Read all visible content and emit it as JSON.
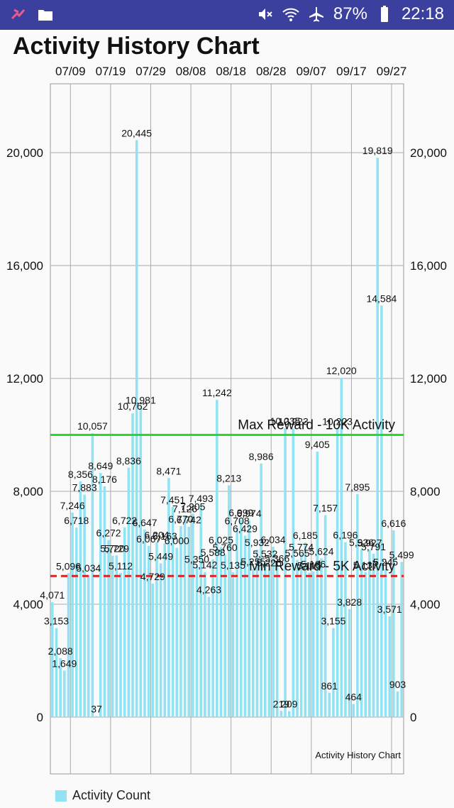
{
  "status_bar": {
    "battery": "87%",
    "time": "22:18"
  },
  "app": {
    "title": "Activity History Chart"
  },
  "chart_data": {
    "type": "bar",
    "description_label": "Activity History Chart",
    "x_tick_labels": [
      "07/09",
      "07/19",
      "07/29",
      "08/08",
      "08/18",
      "08/28",
      "09/07",
      "09/17",
      "09/27"
    ],
    "x_tick_positions": [
      5,
      15,
      25,
      35,
      45,
      55,
      65,
      75,
      85
    ],
    "y_ticks": [
      0,
      4000,
      8000,
      12000,
      16000,
      20000
    ],
    "y_tick_labels": [
      "0",
      "4,000",
      "8,000",
      "12,000",
      "16,000",
      "20,000"
    ],
    "ylim": [
      0,
      22500
    ],
    "bar_color": "#8fe3f2",
    "values": [
      4071,
      3153,
      2088,
      1649,
      5096,
      7246,
      6718,
      8356,
      7883,
      5034,
      10057,
      37,
      8649,
      8176,
      6272,
      5720,
      5729,
      5112,
      6722,
      8836,
      10762,
      20445,
      10981,
      6647,
      6067,
      4729,
      6204,
      5449,
      6163,
      8471,
      7451,
      6000,
      6770,
      7126,
      6742,
      7205,
      5350,
      7493,
      5142,
      4263,
      5588,
      11242,
      6025,
      5760,
      8213,
      5135,
      6708,
      6999,
      6429,
      6974,
      5255,
      5932,
      8986,
      5532,
      5226,
      6034,
      5366,
      219,
      10235,
      209,
      10223,
      5565,
      5774,
      6185,
      5115,
      5166,
      9405,
      5624,
      7157,
      861,
      3155,
      10223,
      12020,
      6196,
      3828,
      464,
      7895,
      5936,
      5137,
      5927,
      5791,
      19819,
      14584,
      5245,
      3571,
      6616,
      903,
      5499
    ],
    "data_labels": [
      "4,071",
      "3,153",
      "2,088",
      "1,649",
      "5,096",
      "7,246",
      "6,718",
      "8,356",
      "7,883",
      "5,034",
      "10,057",
      "37",
      "8,649",
      "8,176",
      "6,272",
      "5,720",
      "5,729",
      "5,112",
      "6,722",
      "8,836",
      "10,762",
      "20,445",
      "10,981",
      "6,647",
      "6,067",
      "4,729",
      "6,204",
      "5,449",
      "6,163",
      "8,471",
      "7,451",
      "6,000",
      "6,770",
      "7,126",
      "6,742",
      "7,205",
      "5,350",
      "7,493",
      "5,142",
      "4,263",
      "5,588",
      "11,242",
      "6,025",
      "5,760",
      "8,213",
      "5,135",
      "6,708",
      "6,999",
      "6,429",
      "6,974",
      "5,255",
      "5,932",
      "8,986",
      "5,532",
      "5,226",
      "6,034",
      "5,366",
      "219",
      "10,235",
      "209",
      "10,223",
      "5,565",
      "5,774",
      "6,185",
      "5,115",
      "5,166",
      "9,405",
      "5,624",
      "7,157",
      "861",
      "3,155",
      "10,223",
      "12,020",
      "6,196",
      "3,828",
      "464",
      "7,895",
      "5,936",
      "5,137",
      "5,927",
      "5,791",
      "19,819",
      "14,584",
      "5,245",
      "3,571",
      "6,616",
      "903",
      "5,499"
    ],
    "limit_lines": [
      {
        "value": 10000,
        "label": "Max Reward - 10K Activity",
        "color": "#22dd22",
        "dashed": false
      },
      {
        "value": 5000,
        "label": "Min Reward - 5K Activity",
        "color": "#e02020",
        "dashed": true
      }
    ],
    "legend": [
      {
        "name": "Activity Count",
        "color": "#8fe3f2"
      }
    ],
    "legend_position": "bottom-left",
    "grid": true
  }
}
